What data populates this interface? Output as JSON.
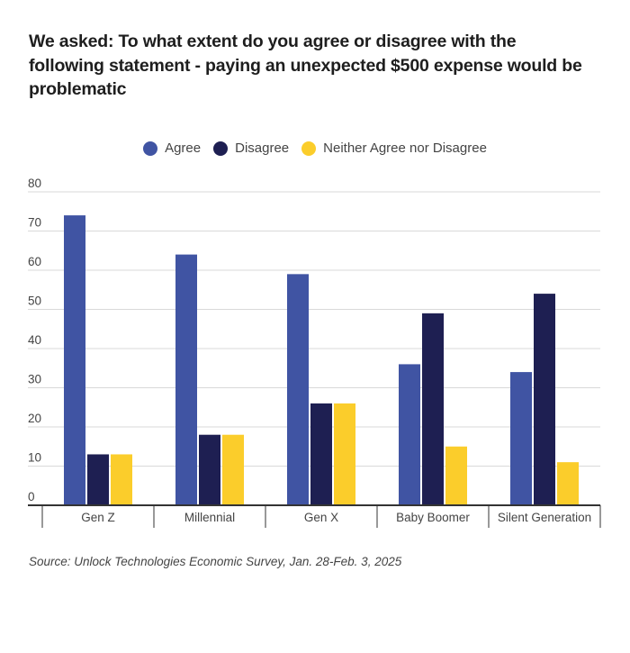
{
  "chart_data": {
    "type": "bar",
    "title": "We asked: To what extent do you agree or disagree with the following statement - paying an unexpected $500 expense would be problematic",
    "categories": [
      "Gen Z",
      "Millennial",
      "Gen X",
      "Baby Boomer",
      "Silent Generation"
    ],
    "series": [
      {
        "name": "Agree",
        "color": "#4054a3",
        "values": [
          74,
          64,
          59,
          36,
          34
        ]
      },
      {
        "name": "Disagree",
        "color": "#1e1f52",
        "values": [
          13,
          18,
          26,
          49,
          54
        ]
      },
      {
        "name": "Neither Agree nor Disagree",
        "color": "#fbcd2b",
        "values": [
          13,
          18,
          26,
          15,
          11
        ]
      }
    ],
    "xlabel": "",
    "ylabel": "",
    "ylim": [
      0,
      80
    ],
    "yticks": [
      0,
      10,
      20,
      30,
      40,
      50,
      60,
      70,
      80
    ],
    "grid": true,
    "legend_position": "top-center"
  },
  "source": "Source: Unlock Technologies Economic Survey, Jan. 28-Feb. 3, 2025"
}
